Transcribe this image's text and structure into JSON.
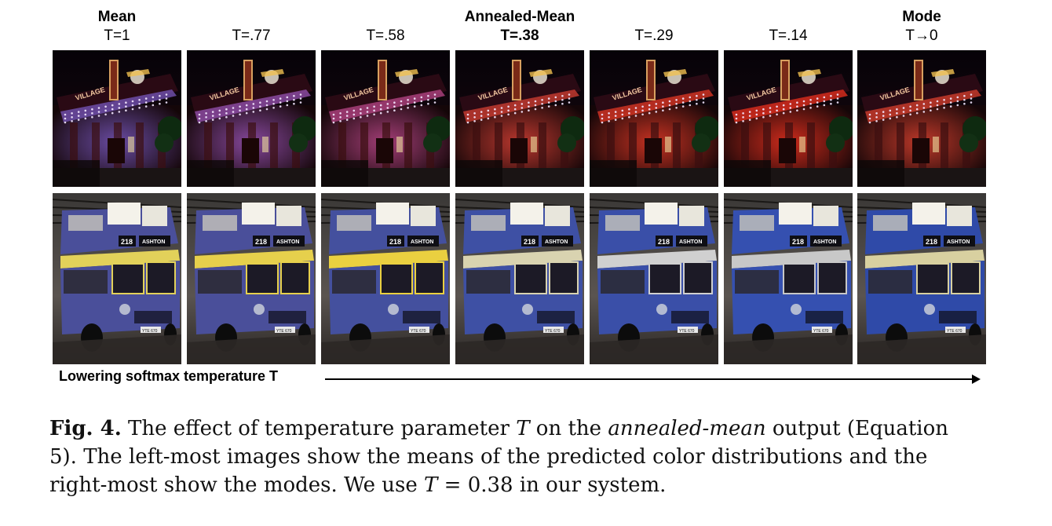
{
  "columns": [
    {
      "method": "Mean",
      "temp": "T=1",
      "bold_temp": false,
      "tint": "#6d4ea8",
      "bus_tint": "#4a4f9a",
      "bus_light": "#e2d15a",
      "sat": 0.15
    },
    {
      "method": "",
      "temp": "T=.77",
      "bold_temp": false,
      "tint": "#8a4aa0",
      "bus_tint": "#4a4f9a",
      "bus_light": "#e6d04c",
      "sat": 0.3
    },
    {
      "method": "",
      "temp": "T=.58",
      "bold_temp": false,
      "tint": "#a8407a",
      "bus_tint": "#44509e",
      "bus_light": "#ead040",
      "sat": 0.45
    },
    {
      "method": "Annealed-Mean",
      "temp": "T=.38",
      "bold_temp": true,
      "tint": "#c0392f",
      "bus_tint": "#3e50a4",
      "bus_light": "#d9d3b0",
      "sat": 0.6
    },
    {
      "method": "",
      "temp": "T=.29",
      "bold_temp": false,
      "tint": "#cc3322",
      "bus_tint": "#3a4fa8",
      "bus_light": "#d0d0d0",
      "sat": 0.72
    },
    {
      "method": "",
      "temp": "T=.14",
      "bold_temp": false,
      "tint": "#d42c1c",
      "bus_tint": "#3550b0",
      "bus_light": "#c8c8c8",
      "sat": 0.85
    },
    {
      "method": "Mode",
      "temp": "T→0",
      "bold_temp": false,
      "tint": "#c43a2a",
      "bus_tint": "#2f4aa8",
      "bus_light": "#d8d0a0",
      "sat": 0.95
    }
  ],
  "axis_label": "Lowering softmax temperature T",
  "caption": {
    "fig_label": "Fig. 4.",
    "line1_a": " The effect of temperature parameter ",
    "line1_T": "T",
    "line1_b": " on the ",
    "line1_it": "annealed-mean",
    "line1_c": " output (Equation",
    "line2": "5). The left-most images show the means of the predicted color distributions and the",
    "line3_a": "right-most show the modes. We use ",
    "line3_T": "T",
    "line3_b": " = 0.38 in our system."
  },
  "sign_text": {
    "marquee": "VILLAGE",
    "number": "218",
    "dest": "ASHTON",
    "plate": "YTE 670"
  }
}
